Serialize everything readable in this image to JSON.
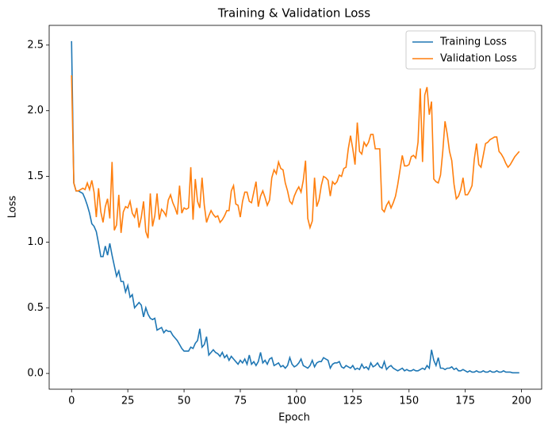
{
  "chart_data": {
    "type": "line",
    "title": "Training & Validation Loss",
    "x_label": "Epoch",
    "y_label": "Loss",
    "x": [
      0,
      1,
      2,
      3,
      4,
      5,
      6,
      7,
      8,
      9,
      10,
      11,
      12,
      13,
      14,
      15,
      16,
      17,
      18,
      19,
      20,
      21,
      22,
      23,
      24,
      25,
      26,
      27,
      28,
      29,
      30,
      31,
      32,
      33,
      34,
      35,
      36,
      37,
      38,
      39,
      40,
      41,
      42,
      43,
      44,
      45,
      46,
      47,
      48,
      49,
      50,
      51,
      52,
      53,
      54,
      55,
      56,
      57,
      58,
      59,
      60,
      61,
      62,
      63,
      64,
      65,
      66,
      67,
      68,
      69,
      70,
      71,
      72,
      73,
      74,
      75,
      76,
      77,
      78,
      79,
      80,
      81,
      82,
      83,
      84,
      85,
      86,
      87,
      88,
      89,
      90,
      91,
      92,
      93,
      94,
      95,
      96,
      97,
      98,
      99,
      100,
      101,
      102,
      103,
      104,
      105,
      106,
      107,
      108,
      109,
      110,
      111,
      112,
      113,
      114,
      115,
      116,
      117,
      118,
      119,
      120,
      121,
      122,
      123,
      124,
      125,
      126,
      127,
      128,
      129,
      130,
      131,
      132,
      133,
      134,
      135,
      136,
      137,
      138,
      139,
      140,
      141,
      142,
      143,
      144,
      145,
      146,
      147,
      148,
      149,
      150,
      151,
      152,
      153,
      154,
      155,
      156,
      157,
      158,
      159,
      160,
      161,
      162,
      163,
      164,
      165,
      166,
      167,
      168,
      169,
      170,
      171,
      172,
      173,
      174,
      175,
      176,
      177,
      178,
      179,
      180,
      181,
      182,
      183,
      184,
      185,
      186,
      187,
      188,
      189,
      190,
      191,
      192,
      193,
      194,
      195,
      196,
      197,
      198,
      199
    ],
    "series": [
      {
        "name": "Training Loss",
        "color": "#1f77b4",
        "values": [
          2.53,
          1.45,
          1.39,
          1.39,
          1.38,
          1.37,
          1.33,
          1.28,
          1.22,
          1.14,
          1.12,
          1.08,
          0.99,
          0.89,
          0.89,
          0.97,
          0.9,
          0.99,
          0.9,
          0.82,
          0.74,
          0.78,
          0.7,
          0.7,
          0.62,
          0.67,
          0.58,
          0.6,
          0.5,
          0.52,
          0.54,
          0.52,
          0.43,
          0.5,
          0.45,
          0.42,
          0.41,
          0.42,
          0.33,
          0.34,
          0.35,
          0.31,
          0.33,
          0.32,
          0.32,
          0.29,
          0.27,
          0.25,
          0.22,
          0.19,
          0.17,
          0.17,
          0.17,
          0.2,
          0.19,
          0.23,
          0.25,
          0.34,
          0.2,
          0.22,
          0.28,
          0.14,
          0.16,
          0.18,
          0.16,
          0.15,
          0.13,
          0.16,
          0.12,
          0.14,
          0.1,
          0.13,
          0.11,
          0.09,
          0.07,
          0.1,
          0.08,
          0.11,
          0.07,
          0.14,
          0.07,
          0.09,
          0.06,
          0.09,
          0.16,
          0.08,
          0.1,
          0.07,
          0.11,
          0.12,
          0.06,
          0.07,
          0.08,
          0.05,
          0.06,
          0.04,
          0.06,
          0.12,
          0.07,
          0.05,
          0.06,
          0.08,
          0.11,
          0.06,
          0.05,
          0.04,
          0.06,
          0.1,
          0.05,
          0.08,
          0.09,
          0.09,
          0.12,
          0.11,
          0.1,
          0.04,
          0.07,
          0.08,
          0.08,
          0.09,
          0.05,
          0.04,
          0.06,
          0.05,
          0.04,
          0.06,
          0.03,
          0.04,
          0.03,
          0.07,
          0.04,
          0.05,
          0.03,
          0.08,
          0.05,
          0.06,
          0.08,
          0.05,
          0.04,
          0.09,
          0.03,
          0.05,
          0.06,
          0.04,
          0.03,
          0.02,
          0.03,
          0.04,
          0.02,
          0.03,
          0.02,
          0.02,
          0.03,
          0.02,
          0.02,
          0.03,
          0.04,
          0.03,
          0.06,
          0.04,
          0.18,
          0.1,
          0.06,
          0.12,
          0.04,
          0.04,
          0.03,
          0.04,
          0.04,
          0.05,
          0.03,
          0.04,
          0.02,
          0.02,
          0.03,
          0.02,
          0.01,
          0.02,
          0.01,
          0.01,
          0.02,
          0.01,
          0.01,
          0.02,
          0.01,
          0.01,
          0.02,
          0.01,
          0.01,
          0.02,
          0.01,
          0.01,
          0.02,
          0.01,
          0.01,
          0.01,
          0.005,
          0.005,
          0.005,
          0.005
        ]
      },
      {
        "name": "Validation Loss",
        "color": "#ff7f0e",
        "values": [
          2.27,
          1.45,
          1.39,
          1.39,
          1.4,
          1.41,
          1.4,
          1.45,
          1.4,
          1.47,
          1.38,
          1.19,
          1.41,
          1.23,
          1.15,
          1.27,
          1.33,
          1.18,
          1.61,
          1.09,
          1.13,
          1.36,
          1.07,
          1.23,
          1.27,
          1.26,
          1.31,
          1.22,
          1.19,
          1.26,
          1.11,
          1.19,
          1.31,
          1.08,
          1.03,
          1.37,
          1.12,
          1.2,
          1.37,
          1.17,
          1.25,
          1.23,
          1.2,
          1.32,
          1.36,
          1.3,
          1.26,
          1.21,
          1.43,
          1.22,
          1.26,
          1.25,
          1.26,
          1.57,
          1.17,
          1.48,
          1.31,
          1.26,
          1.49,
          1.28,
          1.15,
          1.2,
          1.24,
          1.21,
          1.19,
          1.2,
          1.15,
          1.17,
          1.2,
          1.24,
          1.24,
          1.39,
          1.43,
          1.29,
          1.28,
          1.19,
          1.31,
          1.38,
          1.38,
          1.31,
          1.3,
          1.38,
          1.46,
          1.27,
          1.35,
          1.39,
          1.34,
          1.28,
          1.32,
          1.49,
          1.55,
          1.52,
          1.61,
          1.56,
          1.55,
          1.45,
          1.39,
          1.31,
          1.29,
          1.35,
          1.39,
          1.42,
          1.38,
          1.47,
          1.62,
          1.18,
          1.11,
          1.16,
          1.49,
          1.27,
          1.32,
          1.43,
          1.5,
          1.49,
          1.47,
          1.35,
          1.46,
          1.44,
          1.46,
          1.51,
          1.5,
          1.56,
          1.57,
          1.71,
          1.81,
          1.71,
          1.59,
          1.91,
          1.69,
          1.67,
          1.76,
          1.73,
          1.76,
          1.82,
          1.82,
          1.71,
          1.71,
          1.71,
          1.25,
          1.23,
          1.28,
          1.31,
          1.26,
          1.3,
          1.35,
          1.44,
          1.55,
          1.66,
          1.58,
          1.58,
          1.59,
          1.65,
          1.66,
          1.64,
          1.76,
          2.17,
          1.61,
          2.12,
          2.18,
          1.97,
          2.07,
          1.48,
          1.46,
          1.45,
          1.51,
          1.69,
          1.92,
          1.82,
          1.69,
          1.62,
          1.44,
          1.33,
          1.35,
          1.4,
          1.49,
          1.36,
          1.36,
          1.39,
          1.43,
          1.63,
          1.75,
          1.59,
          1.57,
          1.66,
          1.75,
          1.76,
          1.78,
          1.79,
          1.8,
          1.8,
          1.69,
          1.67,
          1.64,
          1.6,
          1.57,
          1.59,
          1.62,
          1.65,
          1.67,
          1.69
        ]
      }
    ],
    "xlim": [
      -9.95,
      208.95
    ],
    "xticks": [
      0,
      25,
      50,
      75,
      100,
      125,
      150,
      175,
      200
    ],
    "ylim": [
      -0.12,
      2.65
    ],
    "yticks": [
      {
        "value": 0,
        "label": "0.0"
      },
      0.5,
      {
        "value": 1,
        "label": "1.0"
      },
      1.5,
      {
        "value": 2,
        "label": "2.0"
      },
      2.5
    ],
    "grid": false,
    "legend": "upper right"
  }
}
